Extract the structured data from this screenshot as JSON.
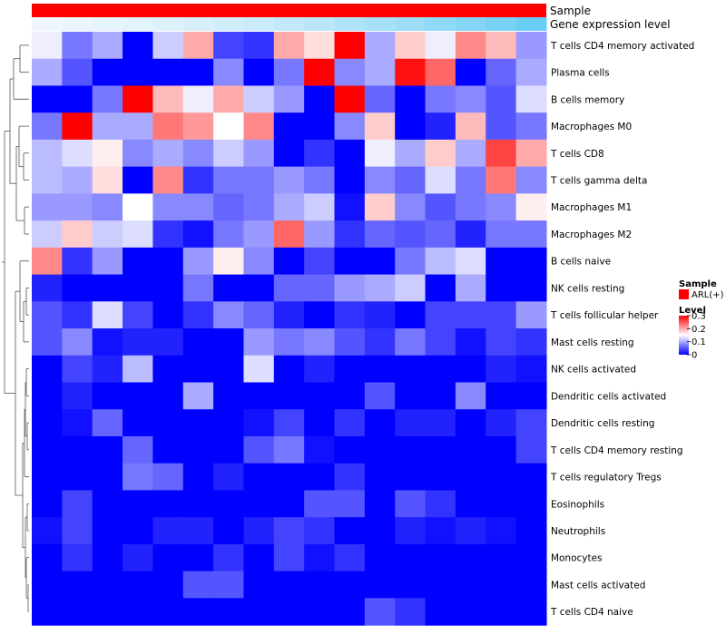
{
  "chart_data": {
    "type": "heatmap",
    "title": "",
    "annotation_tracks": [
      "Sample",
      "Gene expression level"
    ],
    "sample_group": "ARL(+)",
    "colors": {
      "sample": "#ff0000",
      "gene_low": "#f2f8fc",
      "gene_high": "#5bc8f5",
      "heat_low": "#0000ff",
      "heat_mid": "#ffffff",
      "heat_high": "#ff0000",
      "dendrogram": "#555555"
    },
    "legend": {
      "sample_title": "Sample",
      "sample_label": "ARL(+)",
      "level_title": "Level",
      "level_ticks": [
        "0.3",
        "0.2",
        "0.1",
        "0"
      ],
      "level_tick_values": [
        0.3,
        0.2,
        0.1,
        0
      ],
      "range": [
        0,
        0.3
      ]
    },
    "columns": 17,
    "rows": [
      "T cells CD4 memory activated",
      "Plasma cells",
      "B cells memory",
      "Macrophages M0",
      "T cells CD8",
      "T cells gamma delta",
      "Macrophages M1",
      "Macrophages M2",
      "B cells naive",
      "NK cells resting",
      "T cells follicular helper",
      "Mast cells resting",
      "NK cells activated",
      "Dendritic cells activated",
      "Dendritic cells resting",
      "T cells CD4 memory resting",
      "T cells regulatory  Tregs",
      "Eosinophils",
      "Neutrophils",
      "Monocytes",
      "Mast cells activated",
      "T cells CD4 naive"
    ],
    "gene_expression_level": [
      0.02,
      0.05,
      0.08,
      0.11,
      0.14,
      0.18,
      0.22,
      0.27,
      0.32,
      0.38,
      0.44,
      0.5,
      0.57,
      0.64,
      0.72,
      0.8,
      0.9
    ],
    "values": [
      [
        0.14,
        0.07,
        0.1,
        0.0,
        0.12,
        0.2,
        0.04,
        0.03,
        0.2,
        0.17,
        0.3,
        0.1,
        0.18,
        0.14,
        0.22,
        0.19,
        0.09
      ],
      [
        0.1,
        0.05,
        0.0,
        0.0,
        0.0,
        0.0,
        0.08,
        0.0,
        0.07,
        0.3,
        0.08,
        0.1,
        0.29,
        0.24,
        0.0,
        0.06,
        0.1
      ],
      [
        0.0,
        0.0,
        0.07,
        0.3,
        0.19,
        0.14,
        0.2,
        0.12,
        0.09,
        0.0,
        0.3,
        0.06,
        0.0,
        0.07,
        0.08,
        0.05,
        0.13
      ],
      [
        0.07,
        0.3,
        0.1,
        0.1,
        0.23,
        0.21,
        0.15,
        0.22,
        0.0,
        0.0,
        0.08,
        0.18,
        0.0,
        0.02,
        0.19,
        0.05,
        0.07
      ],
      [
        0.11,
        0.13,
        0.16,
        0.08,
        0.1,
        0.08,
        0.12,
        0.09,
        0.0,
        0.03,
        0.0,
        0.14,
        0.1,
        0.18,
        0.1,
        0.26,
        0.2
      ],
      [
        0.11,
        0.1,
        0.17,
        0.0,
        0.22,
        0.03,
        0.07,
        0.07,
        0.09,
        0.07,
        0.0,
        0.08,
        0.06,
        0.13,
        0.07,
        0.23,
        0.08
      ],
      [
        0.09,
        0.09,
        0.08,
        0.15,
        0.08,
        0.08,
        0.06,
        0.07,
        0.1,
        0.12,
        0.01,
        0.18,
        0.08,
        0.05,
        0.07,
        0.08,
        0.16
      ],
      [
        0.12,
        0.18,
        0.12,
        0.13,
        0.03,
        0.01,
        0.07,
        0.09,
        0.24,
        0.09,
        0.03,
        0.06,
        0.05,
        0.06,
        0.02,
        0.07,
        0.07
      ],
      [
        0.22,
        0.03,
        0.09,
        0.0,
        0.0,
        0.09,
        0.16,
        0.08,
        0.0,
        0.04,
        0.0,
        0.0,
        0.07,
        0.11,
        0.13,
        0.0,
        0.0
      ],
      [
        0.02,
        0.0,
        0.0,
        0.0,
        0.0,
        0.07,
        0.0,
        0.0,
        0.06,
        0.06,
        0.09,
        0.1,
        0.12,
        0.0,
        0.1,
        0.0,
        0.0
      ],
      [
        0.05,
        0.03,
        0.13,
        0.04,
        0.0,
        0.03,
        0.08,
        0.06,
        0.02,
        0.0,
        0.03,
        0.02,
        0.0,
        0.04,
        0.04,
        0.04,
        0.09
      ],
      [
        0.05,
        0.08,
        0.01,
        0.02,
        0.02,
        0.0,
        0.0,
        0.09,
        0.07,
        0.08,
        0.05,
        0.03,
        0.07,
        0.04,
        0.01,
        0.04,
        0.03
      ],
      [
        0.0,
        0.04,
        0.02,
        0.11,
        0.0,
        0.0,
        0.0,
        0.13,
        0.0,
        0.02,
        0.0,
        0.0,
        0.0,
        0.0,
        0.0,
        0.02,
        0.01
      ],
      [
        0.0,
        0.02,
        0.0,
        0.0,
        0.0,
        0.1,
        0.0,
        0.0,
        0.0,
        0.0,
        0.0,
        0.05,
        0.0,
        0.0,
        0.08,
        0.0,
        0.0
      ],
      [
        0.0,
        0.01,
        0.06,
        0.0,
        0.0,
        0.0,
        0.0,
        0.01,
        0.04,
        0.0,
        0.03,
        0.0,
        0.02,
        0.02,
        0.0,
        0.02,
        0.04
      ],
      [
        0.0,
        0.0,
        0.0,
        0.06,
        0.0,
        0.0,
        0.0,
        0.05,
        0.07,
        0.01,
        0.0,
        0.0,
        0.0,
        0.0,
        0.0,
        0.0,
        0.04
      ],
      [
        0.0,
        0.0,
        0.0,
        0.07,
        0.06,
        0.0,
        0.02,
        0.0,
        0.0,
        0.0,
        0.03,
        0.0,
        0.0,
        0.0,
        0.0,
        0.0,
        0.0
      ],
      [
        0.0,
        0.04,
        0.0,
        0.0,
        0.0,
        0.0,
        0.0,
        0.0,
        0.0,
        0.05,
        0.05,
        0.0,
        0.05,
        0.03,
        0.0,
        0.0,
        0.0
      ],
      [
        0.01,
        0.04,
        0.0,
        0.0,
        0.02,
        0.02,
        0.0,
        0.02,
        0.04,
        0.03,
        0.0,
        0.0,
        0.02,
        0.01,
        0.02,
        0.01,
        0.0
      ],
      [
        0.0,
        0.03,
        0.0,
        0.02,
        0.0,
        0.0,
        0.03,
        0.0,
        0.04,
        0.01,
        0.03,
        0.0,
        0.0,
        0.0,
        0.0,
        0.0,
        0.0
      ],
      [
        0.0,
        0.0,
        0.0,
        0.0,
        0.0,
        0.05,
        0.05,
        0.0,
        0.0,
        0.0,
        0.0,
        0.0,
        0.0,
        0.0,
        0.0,
        0.0,
        0.0
      ],
      [
        0.0,
        0.0,
        0.0,
        0.0,
        0.0,
        0.0,
        0.0,
        0.0,
        0.0,
        0.0,
        0.0,
        0.05,
        0.03,
        0.0,
        0.0,
        0.0,
        0.0
      ]
    ]
  }
}
